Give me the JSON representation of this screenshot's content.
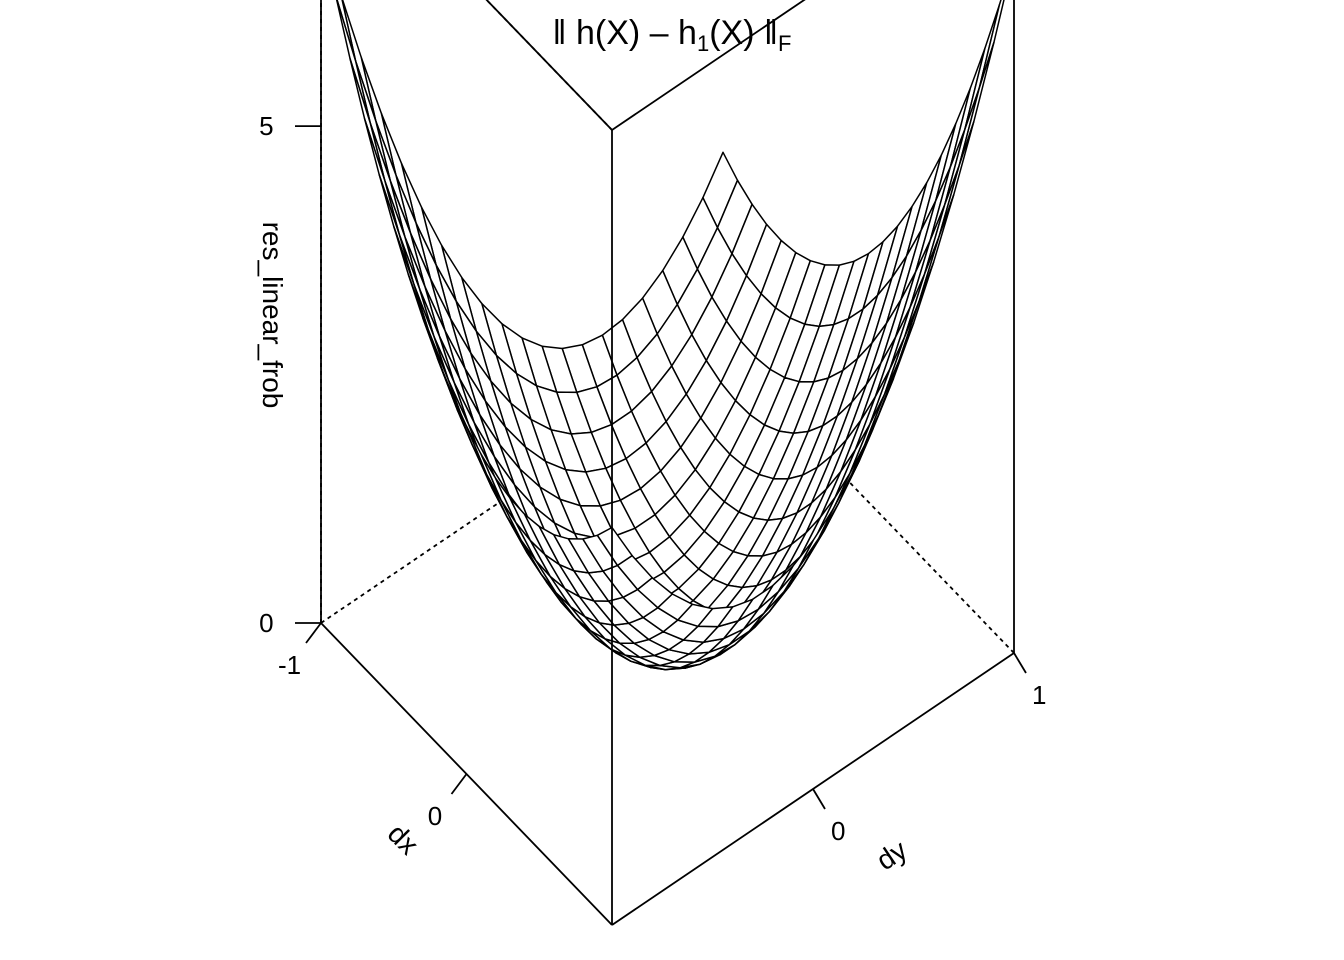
{
  "title": {
    "norm_open": "ǁ h(X) – h",
    "sub1": "1",
    "middle": "(X) ǁ",
    "subF": "F"
  },
  "chart_data": {
    "type": "surface",
    "xlabel": "dx",
    "ylabel": "dy",
    "zlabel": "res_linear_frob",
    "xlim": [
      -1,
      1
    ],
    "ylim": [
      -1,
      1
    ],
    "zlim": [
      0,
      8
    ],
    "x_ticks": [
      "-1",
      "0"
    ],
    "y_ticks": [
      "0",
      "1"
    ],
    "z_ticks": [
      "0",
      "5"
    ],
    "grid_n": 21,
    "surface_function": "2*dx^2 + 3*dy^2 + 2*dx*dy + 0.5*dx - 0.5*dy"
  }
}
